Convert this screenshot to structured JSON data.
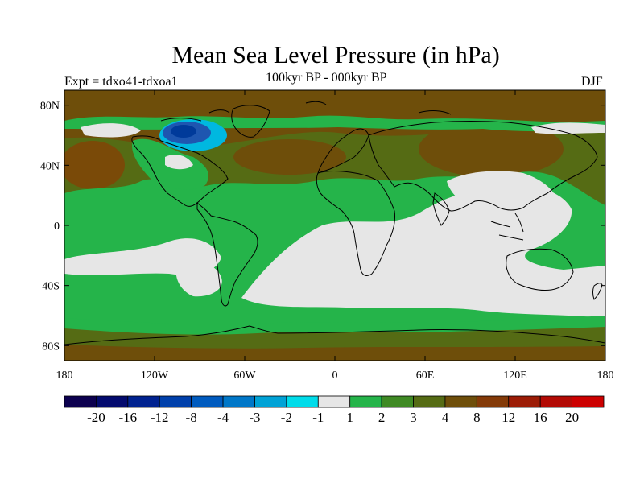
{
  "title": "Mean Sea Level Pressure (in hPa)",
  "experiment": "Expt = tdxo41-tdxoa1",
  "period": "100kyr BP - 000kyr BP",
  "season": "DJF",
  "axes": {
    "x_ticks": [
      {
        "value": -180,
        "label": "180"
      },
      {
        "value": -120,
        "label": "120W"
      },
      {
        "value": -60,
        "label": "60W"
      },
      {
        "value": 0,
        "label": "0"
      },
      {
        "value": 60,
        "label": "60E"
      },
      {
        "value": 120,
        "label": "120E"
      },
      {
        "value": 180,
        "label": "180"
      }
    ],
    "y_ticks": [
      {
        "value": 80,
        "label": "80N"
      },
      {
        "value": 40,
        "label": "40N"
      },
      {
        "value": 0,
        "label": "0"
      },
      {
        "value": -40,
        "label": "40S"
      },
      {
        "value": -80,
        "label": "80S"
      }
    ],
    "lon_range": [
      -180,
      180
    ],
    "lat_range": [
      -90,
      90
    ]
  },
  "colorbar": {
    "colors": [
      "#0c004f",
      "#030a6e",
      "#002290",
      "#0040ab",
      "#005bbf",
      "#0077c8",
      "#00a2d6",
      "#00dcea",
      "#e6e6e6",
      "#25b44a",
      "#3f8a24",
      "#556b14",
      "#6e4e0a",
      "#843a08",
      "#9c1c06",
      "#b30a04",
      "#cc0000"
    ],
    "labels": [
      "-20",
      "-16",
      "-12",
      "-8",
      "-4",
      "-3",
      "-2",
      "-1",
      "1",
      "2",
      "3",
      "4",
      "8",
      "12",
      "16",
      "20"
    ]
  },
  "map_colors": {
    "light": "#e6e6e6",
    "green": "#25b44a",
    "olive": "#556b14",
    "brown": "#6e4e0a",
    "blue": "#1e56b0",
    "dark_blue": "#003a9a",
    "cyan": "#00b8e0"
  }
}
